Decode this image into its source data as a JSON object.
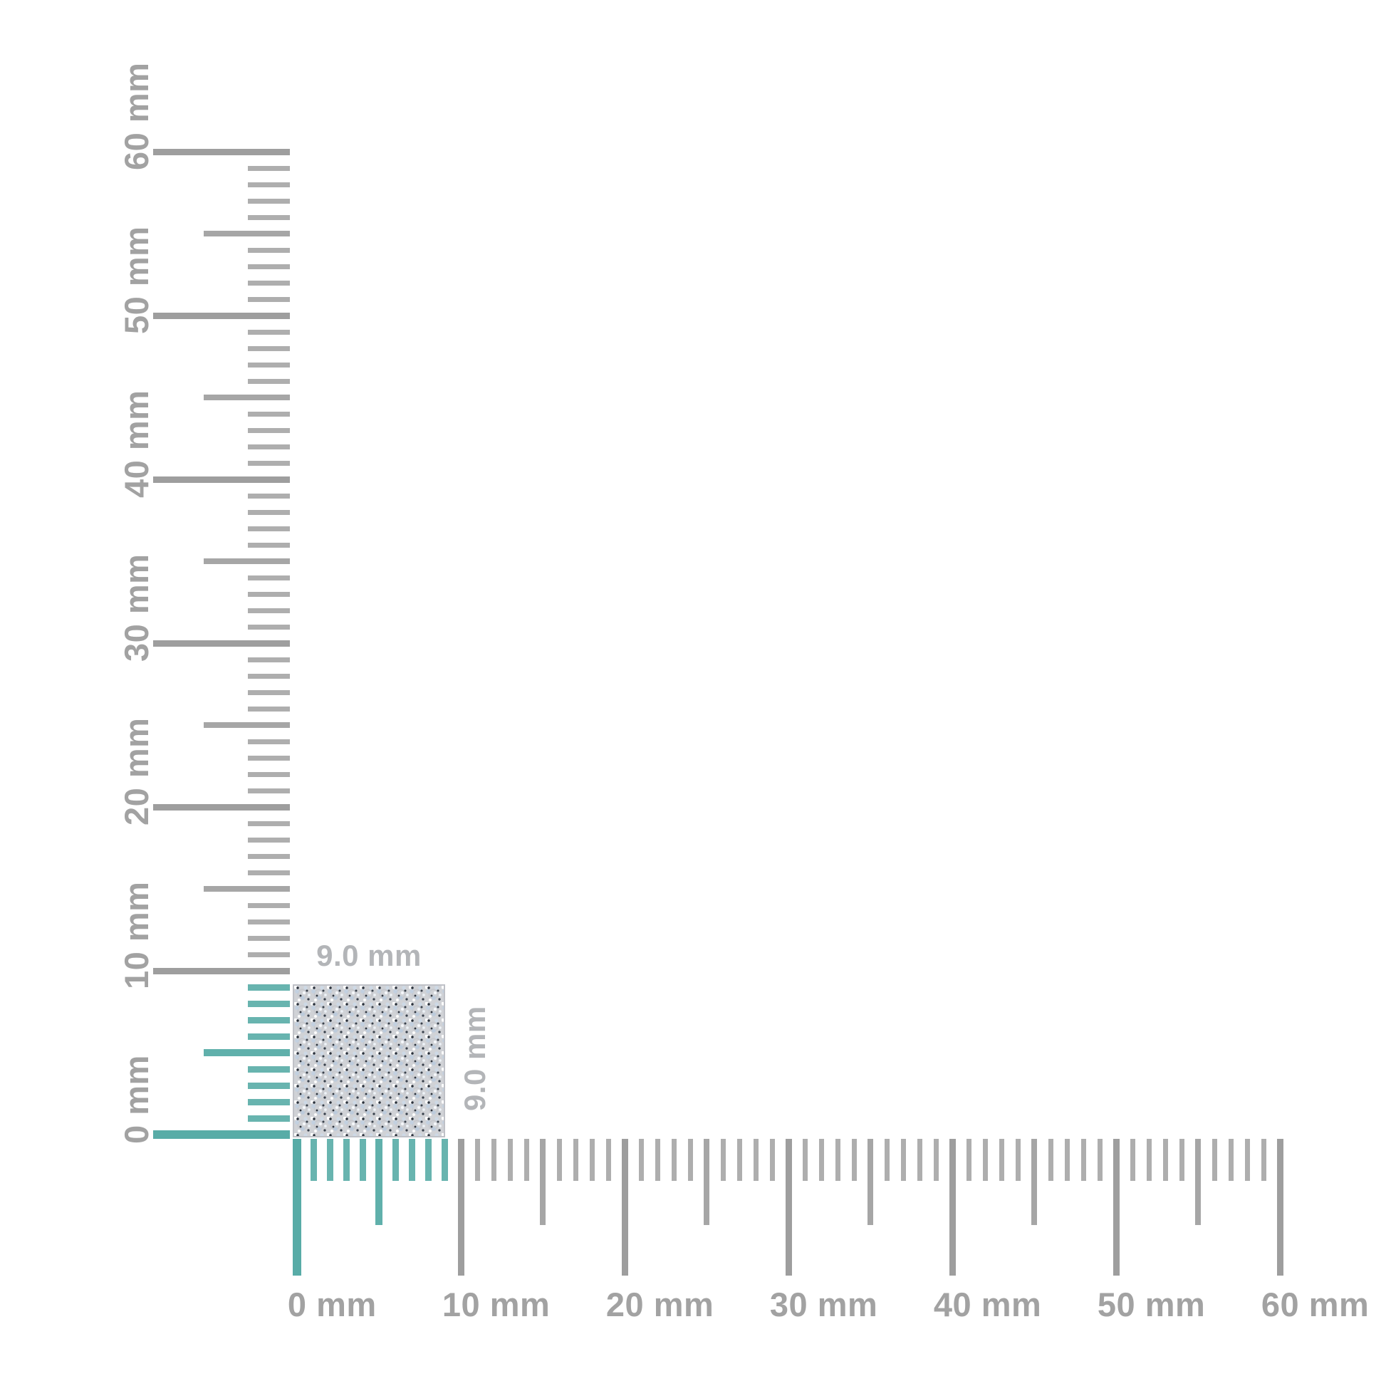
{
  "rulers": {
    "unit": "mm",
    "min_mm": 0,
    "max_mm": 60,
    "minor_step_mm": 1,
    "mid_step_mm": 5,
    "major_step_mm": 10,
    "highlight_up_to_mm": 9,
    "horizontal": {
      "labels": [
        "0 mm",
        "10 mm",
        "20 mm",
        "30 mm",
        "40 mm",
        "50 mm",
        "60 mm"
      ]
    },
    "vertical": {
      "labels": [
        "0 mm",
        "10 mm",
        "20 mm",
        "30 mm",
        "40 mm",
        "50 mm",
        "60 mm"
      ]
    }
  },
  "object": {
    "width_label": "9.0 mm",
    "height_label": "9.0 mm",
    "width_mm": 9.0,
    "height_mm": 9.0,
    "texture": "pave-crystal-glitter"
  },
  "colors": {
    "background": "#ffffff",
    "tick_gray_major": "#9e9e9e",
    "tick_gray_mid": "#a6a6a6",
    "tick_gray_minor": "#aeaeae",
    "tick_teal_major": "#58aca7",
    "tick_teal_mid": "#60b0ab",
    "tick_teal_minor": "#68b4af",
    "axis_label": "#a2a2a2",
    "dim_label": "#b3b5b8"
  }
}
